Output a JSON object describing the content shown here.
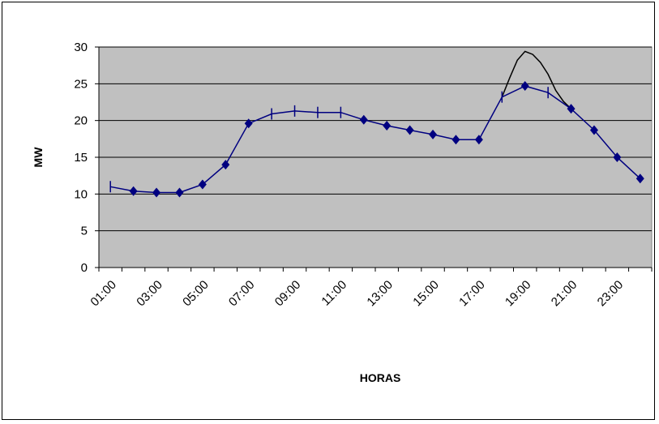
{
  "chart_data": {
    "type": "line",
    "title": "",
    "xlabel": "HORAS",
    "ylabel": "MW",
    "ylim": [
      0,
      30
    ],
    "y_ticks": [
      0,
      5,
      10,
      15,
      20,
      25,
      30
    ],
    "grid": true,
    "categories": [
      "01:00",
      "02:00",
      "03:00",
      "04:00",
      "05:00",
      "06:00",
      "07:00",
      "08:00",
      "09:00",
      "10:00",
      "11:00",
      "12:00",
      "13:00",
      "14:00",
      "15:00",
      "16:00",
      "17:00",
      "18:00",
      "19:00",
      "20:00",
      "21:00",
      "22:00",
      "23:00",
      "24:00"
    ],
    "x_tick_labels": [
      "01:00",
      "03:00",
      "05:00",
      "07:00",
      "09:00",
      "11:00",
      "13:00",
      "15:00",
      "17:00",
      "19:00",
      "21:00",
      "23:00"
    ],
    "series": [
      {
        "name": "",
        "color": "#000080",
        "values": [
          11.0,
          10.4,
          10.2,
          10.2,
          11.3,
          14.0,
          19.6,
          20.9,
          21.3,
          21.1,
          21.1,
          20.1,
          19.3,
          18.7,
          18.1,
          17.4,
          17.4,
          23.2,
          24.7,
          23.8,
          21.6,
          18.7,
          15.0,
          12.1
        ]
      },
      {
        "name": "",
        "color": "#000000",
        "x": [
          "18:00",
          "18:20",
          "18:40",
          "19:00",
          "19:20",
          "19:40",
          "20:00",
          "20:20",
          "20:40",
          "21:00"
        ],
        "values": [
          23.2,
          25.8,
          28.2,
          29.4,
          29.0,
          27.9,
          26.3,
          24.1,
          22.6,
          21.6
        ]
      }
    ]
  }
}
